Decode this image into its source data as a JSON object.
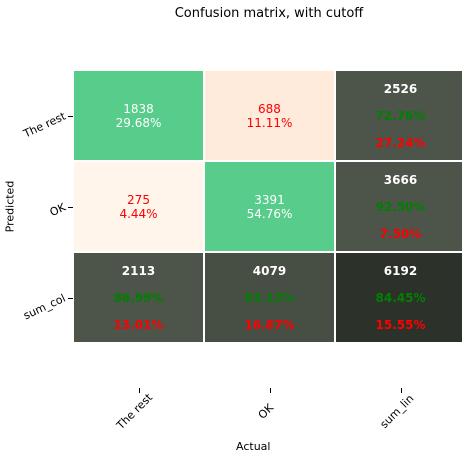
{
  "title": "Confusion matrix, with cutoff",
  "colors": {
    "diagonal": "#57cc8b",
    "off_low": "#fff5eb",
    "off_high": "#ffebdc",
    "sum_dark": "#4d5449",
    "sum_darker": "#474f44",
    "total": "#2c312a",
    "green_text": "#008000",
    "red_text": "#ff0000"
  },
  "chart_data": {
    "type": "heatmap",
    "title": "Confusion matrix, with cutoff",
    "xlabel": "Actual",
    "ylabel": "Predicted",
    "x_categories": [
      "The rest",
      "OK",
      "sum_lin"
    ],
    "y_categories": [
      "The rest",
      "OK",
      "sum_col"
    ],
    "cells": [
      {
        "row": 0,
        "col": 0,
        "kind": "value",
        "count": "1838",
        "pct": "29.68%"
      },
      {
        "row": 0,
        "col": 1,
        "kind": "value",
        "count": "688",
        "pct": "11.11%"
      },
      {
        "row": 0,
        "col": 2,
        "kind": "sum",
        "count": "2526",
        "good": "72.76%",
        "bad": "27.24%"
      },
      {
        "row": 1,
        "col": 0,
        "kind": "value",
        "count": "275",
        "pct": "4.44%"
      },
      {
        "row": 1,
        "col": 1,
        "kind": "value",
        "count": "3391",
        "pct": "54.76%"
      },
      {
        "row": 1,
        "col": 2,
        "kind": "sum",
        "count": "3666",
        "good": "92.50%",
        "bad": "7.50%"
      },
      {
        "row": 2,
        "col": 0,
        "kind": "sum",
        "count": "2113",
        "good": "86.99%",
        "bad": "13.01%"
      },
      {
        "row": 2,
        "col": 1,
        "kind": "sum",
        "count": "4079",
        "good": "83.13%",
        "bad": "16.87%"
      },
      {
        "row": 2,
        "col": 2,
        "kind": "sum",
        "count": "6192",
        "good": "84.45%",
        "bad": "15.55%"
      }
    ]
  }
}
